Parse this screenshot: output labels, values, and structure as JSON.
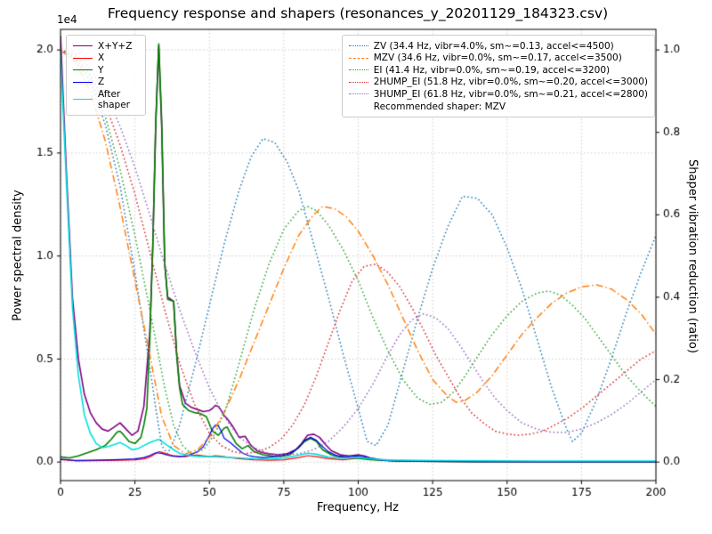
{
  "chart_data": {
    "type": "line",
    "title": "Frequency response and shapers (resonances_y_20201129_184323.csv)",
    "xlabel": "Frequency, Hz",
    "ylabel_left": "Power spectral density",
    "ylabel_right": "Shaper vibration reduction (ratio)",
    "y_left_offset_text": "1e4",
    "grid": true,
    "xlim": [
      0,
      200
    ],
    "ylim_left": [
      -900,
      21000
    ],
    "ylim_right": [
      -0.045,
      1.05
    ],
    "x_ticks": [
      0,
      25,
      50,
      75,
      100,
      125,
      150,
      175,
      200
    ],
    "x_tick_labels": [
      "0",
      "25",
      "50",
      "75",
      "100",
      "125",
      "150",
      "175",
      "200"
    ],
    "y_left_ticks": [
      0,
      5000,
      10000,
      15000,
      20000
    ],
    "y_left_tick_labels": [
      "0.0",
      "0.5",
      "1.0",
      "1.5",
      "2.0"
    ],
    "y_right_ticks": [
      0,
      0.2,
      0.4,
      0.6,
      0.8,
      1.0
    ],
    "y_right_tick_labels": [
      "0.0",
      "0.2",
      "0.4",
      "0.6",
      "0.8",
      "1.0"
    ],
    "legend_psd": {
      "items": [
        {
          "label": "X+Y+Z",
          "color": "#800080",
          "style": "solid"
        },
        {
          "label": "X",
          "color": "#ff0000",
          "style": "solid"
        },
        {
          "label": "Y",
          "color": "#008000",
          "style": "solid"
        },
        {
          "label": "Z",
          "color": "#0000ee",
          "style": "solid"
        },
        {
          "label": "After shaper",
          "color": "#00e0e0",
          "style": "solid"
        }
      ]
    },
    "legend_shapers": {
      "items": [
        {
          "label": "ZV (34.4 Hz, vibr=4.0%, sm~=0.13, accel<=4500)",
          "color": "#1f77b4",
          "style": "dot"
        },
        {
          "label": "MZV (34.6 Hz, vibr=0.0%, sm~=0.17, accel<=3500)",
          "color": "#ff7f0e",
          "style": "dashdot"
        },
        {
          "label": "EI (41.4 Hz, vibr=0.0%, sm~=0.19, accel<=3200)",
          "color": "#2ca02c",
          "style": "dot"
        },
        {
          "label": "2HUMP_EI (51.8 Hz, vibr=0.0%, sm~=0.20, accel<=3000)",
          "color": "#d62728",
          "style": "dot"
        },
        {
          "label": "3HUMP_EI (61.8 Hz, vibr=0.0%, sm~=0.21, accel<=2800)",
          "color": "#9467bd",
          "style": "dot"
        }
      ],
      "note": "Recommended shaper: MZV"
    },
    "series": [
      {
        "name": "psd-sum",
        "label": "X+Y+Z",
        "color": "#800080",
        "style": "solid",
        "width": 1.6,
        "axis": "left",
        "x": [
          0,
          2,
          4,
          6,
          8,
          10,
          12,
          14,
          16,
          18,
          20,
          22,
          24,
          26,
          28,
          30,
          31,
          32,
          33,
          34,
          35,
          36,
          37,
          38,
          39,
          40,
          42,
          44,
          46,
          48,
          50,
          51,
          52,
          53,
          54,
          55,
          56,
          58,
          60,
          62,
          64,
          66,
          68,
          70,
          73,
          76,
          79,
          81,
          83,
          85,
          87,
          89,
          91,
          94,
          97,
          100,
          102,
          104,
          107,
          110,
          115,
          120,
          130,
          140,
          160,
          180,
          200
        ],
        "y": [
          20700,
          14000,
          8000,
          5000,
          3300,
          2400,
          1900,
          1600,
          1500,
          1700,
          1900,
          1600,
          1300,
          1500,
          2700,
          6300,
          10500,
          16500,
          20200,
          16200,
          9600,
          8000,
          7900,
          7800,
          5300,
          3700,
          2850,
          2650,
          2550,
          2450,
          2500,
          2600,
          2750,
          2700,
          2500,
          2250,
          2100,
          1700,
          1200,
          1250,
          800,
          550,
          450,
          400,
          350,
          400,
          600,
          900,
          1300,
          1350,
          1200,
          850,
          550,
          350,
          300,
          350,
          300,
          200,
          120,
          80,
          50,
          40,
          30,
          25,
          18,
          14,
          12
        ]
      },
      {
        "name": "psd-x",
        "label": "X",
        "color": "#ff0000",
        "style": "solid",
        "width": 1.2,
        "axis": "left",
        "x": [
          0,
          5,
          10,
          15,
          20,
          25,
          28,
          30,
          32,
          33,
          34,
          36,
          38,
          40,
          42,
          44,
          46,
          48,
          50,
          52,
          54,
          56,
          58,
          60,
          65,
          70,
          75,
          80,
          83,
          86,
          90,
          95,
          100,
          103,
          106,
          110,
          120,
          140,
          160,
          180,
          200
        ],
        "y": [
          120,
          60,
          70,
          80,
          90,
          110,
          150,
          250,
          420,
          500,
          480,
          380,
          300,
          280,
          260,
          320,
          340,
          300,
          270,
          300,
          280,
          240,
          200,
          160,
          110,
          90,
          110,
          220,
          310,
          260,
          160,
          110,
          190,
          160,
          110,
          60,
          30,
          20,
          15,
          10,
          10
        ]
      },
      {
        "name": "psd-y",
        "label": "Y",
        "color": "#008000",
        "style": "solid",
        "width": 1.6,
        "axis": "left",
        "x": [
          0,
          3,
          6,
          9,
          12,
          15,
          17,
          19,
          20,
          21,
          23,
          25,
          27,
          28,
          29,
          30,
          31,
          32,
          33,
          34,
          35,
          36,
          37,
          38,
          39,
          40,
          41,
          43,
          45,
          47,
          49,
          51,
          53,
          55,
          56,
          57,
          59,
          61,
          63,
          65,
          68,
          71,
          74,
          77,
          80,
          82,
          84,
          86,
          88,
          91,
          94,
          97,
          100,
          104,
          108,
          112,
          120,
          140,
          160,
          180,
          200
        ],
        "y": [
          250,
          200,
          300,
          450,
          600,
          800,
          1100,
          1450,
          1500,
          1350,
          1000,
          900,
          1200,
          1800,
          2600,
          6000,
          10500,
          16500,
          20300,
          16500,
          9700,
          7900,
          7850,
          7800,
          5200,
          3600,
          2800,
          2500,
          2400,
          2350,
          2200,
          1500,
          1300,
          1650,
          1700,
          1400,
          900,
          650,
          800,
          500,
          350,
          300,
          280,
          350,
          700,
          1000,
          1150,
          1000,
          600,
          350,
          250,
          200,
          180,
          120,
          80,
          60,
          40,
          25,
          18,
          12,
          10
        ]
      },
      {
        "name": "psd-z",
        "label": "Z",
        "color": "#0000ee",
        "style": "solid",
        "width": 1.2,
        "axis": "left",
        "x": [
          0,
          5,
          10,
          15,
          20,
          25,
          28,
          30,
          32,
          34,
          36,
          38,
          40,
          42,
          44,
          46,
          48,
          50,
          51,
          52,
          53,
          54,
          55,
          57,
          59,
          61,
          63,
          65,
          68,
          71,
          74,
          77,
          80,
          82,
          84,
          86,
          88,
          90,
          93,
          96,
          99,
          102,
          105,
          108,
          112,
          120,
          140,
          160,
          180,
          200
        ],
        "y": [
          140,
          80,
          90,
          100,
          120,
          150,
          220,
          320,
          450,
          420,
          330,
          280,
          260,
          300,
          380,
          500,
          750,
          1300,
          1600,
          1800,
          1750,
          1500,
          1150,
          950,
          700,
          450,
          320,
          260,
          220,
          250,
          300,
          400,
          700,
          1050,
          1200,
          1050,
          750,
          500,
          300,
          250,
          280,
          260,
          160,
          90,
          60,
          40,
          25,
          15,
          10,
          10
        ]
      },
      {
        "name": "psd-after-shaper",
        "label": "After shaper",
        "color": "#00e0e0",
        "style": "solid",
        "width": 1.6,
        "axis": "left",
        "x": [
          0,
          2,
          4,
          6,
          8,
          10,
          12,
          14,
          16,
          18,
          20,
          22,
          24,
          26,
          28,
          30,
          32,
          33,
          34,
          36,
          38,
          40,
          44,
          48,
          52,
          56,
          60,
          65,
          70,
          75,
          80,
          83,
          86,
          90,
          95,
          100,
          105,
          110,
          120,
          140,
          160,
          180,
          200
        ],
        "y": [
          19800,
          13500,
          7500,
          4200,
          2300,
          1400,
          900,
          700,
          750,
          850,
          950,
          800,
          600,
          650,
          800,
          950,
          1050,
          1100,
          1000,
          800,
          600,
          420,
          300,
          260,
          260,
          230,
          200,
          160,
          150,
          200,
          330,
          430,
          380,
          240,
          190,
          230,
          150,
          100,
          80,
          60,
          50,
          50,
          50
        ]
      },
      {
        "name": "shaper-zv",
        "label": "ZV",
        "color": "#1f77b4",
        "style": "dot",
        "width": 1.5,
        "axis": "right",
        "x": [
          0,
          5,
          10,
          15,
          20,
          25,
          30,
          32,
          34,
          36,
          38,
          40,
          45,
          50,
          55,
          60,
          64,
          68,
          72,
          76,
          80,
          85,
          90,
          95,
          100,
          103,
          106,
          110,
          115,
          120,
          125,
          130,
          135,
          140,
          145,
          150,
          155,
          160,
          165,
          170,
          172,
          175,
          180,
          185,
          190,
          195,
          200
        ],
        "y": [
          1.0,
          0.975,
          0.92,
          0.82,
          0.67,
          0.46,
          0.23,
          0.13,
          0.04,
          0.02,
          0.05,
          0.09,
          0.23,
          0.38,
          0.53,
          0.66,
          0.74,
          0.785,
          0.775,
          0.73,
          0.66,
          0.53,
          0.4,
          0.26,
          0.13,
          0.05,
          0.04,
          0.09,
          0.22,
          0.35,
          0.47,
          0.57,
          0.645,
          0.64,
          0.6,
          0.52,
          0.42,
          0.3,
          0.18,
          0.08,
          0.05,
          0.07,
          0.15,
          0.25,
          0.36,
          0.46,
          0.55
        ]
      },
      {
        "name": "shaper-mzv",
        "label": "MZV",
        "color": "#ff7f0e",
        "style": "dashdot",
        "width": 1.5,
        "axis": "right",
        "x": [
          0,
          5,
          10,
          15,
          20,
          25,
          30,
          34,
          38,
          42,
          46,
          50,
          55,
          60,
          65,
          70,
          75,
          80,
          85,
          88,
          92,
          96,
          100,
          105,
          110,
          115,
          120,
          125,
          130,
          133,
          136,
          140,
          145,
          150,
          155,
          160,
          165,
          170,
          175,
          180,
          185,
          190,
          195,
          200
        ],
        "y": [
          1.0,
          0.97,
          0.9,
          0.78,
          0.62,
          0.44,
          0.26,
          0.11,
          0.04,
          0.02,
          0.03,
          0.06,
          0.12,
          0.2,
          0.29,
          0.38,
          0.47,
          0.55,
          0.6,
          0.62,
          0.615,
          0.595,
          0.56,
          0.5,
          0.43,
          0.35,
          0.27,
          0.2,
          0.16,
          0.145,
          0.15,
          0.17,
          0.21,
          0.26,
          0.31,
          0.35,
          0.385,
          0.41,
          0.425,
          0.43,
          0.42,
          0.395,
          0.36,
          0.31
        ]
      },
      {
        "name": "shaper-ei",
        "label": "EI",
        "color": "#2ca02c",
        "style": "dot",
        "width": 1.5,
        "axis": "right",
        "x": [
          0,
          5,
          10,
          15,
          20,
          25,
          30,
          35,
          38,
          41,
          44,
          48,
          52,
          56,
          60,
          65,
          70,
          75,
          80,
          83,
          86,
          90,
          95,
          100,
          105,
          110,
          115,
          120,
          124,
          128,
          132,
          136,
          140,
          145,
          150,
          155,
          160,
          164,
          168,
          172,
          176,
          180,
          185,
          190,
          195,
          200
        ],
        "y": [
          1.0,
          0.98,
          0.93,
          0.84,
          0.71,
          0.55,
          0.37,
          0.18,
          0.09,
          0.04,
          0.02,
          0.03,
          0.07,
          0.14,
          0.24,
          0.37,
          0.48,
          0.565,
          0.61,
          0.62,
          0.61,
          0.575,
          0.515,
          0.44,
          0.35,
          0.27,
          0.2,
          0.155,
          0.14,
          0.145,
          0.17,
          0.21,
          0.255,
          0.31,
          0.355,
          0.39,
          0.41,
          0.415,
          0.405,
          0.38,
          0.35,
          0.31,
          0.26,
          0.21,
          0.17,
          0.135
        ]
      },
      {
        "name": "shaper-2hump-ei",
        "label": "2HUMP_EI",
        "color": "#d62728",
        "style": "dot",
        "width": 1.5,
        "axis": "right",
        "x": [
          0,
          5,
          10,
          15,
          20,
          25,
          30,
          35,
          40,
          45,
          50,
          54,
          58,
          62,
          66,
          70,
          74,
          78,
          82,
          86,
          90,
          94,
          98,
          102,
          106,
          110,
          114,
          118,
          122,
          126,
          130,
          134,
          138,
          142,
          146,
          150,
          154,
          158,
          162,
          166,
          170,
          175,
          180,
          185,
          190,
          195,
          200
        ],
        "y": [
          1.0,
          0.985,
          0.94,
          0.87,
          0.77,
          0.65,
          0.51,
          0.37,
          0.24,
          0.14,
          0.07,
          0.04,
          0.025,
          0.02,
          0.025,
          0.035,
          0.055,
          0.09,
          0.14,
          0.21,
          0.29,
          0.37,
          0.44,
          0.475,
          0.48,
          0.46,
          0.425,
          0.375,
          0.32,
          0.26,
          0.21,
          0.16,
          0.12,
          0.095,
          0.075,
          0.068,
          0.065,
          0.068,
          0.075,
          0.09,
          0.105,
          0.13,
          0.16,
          0.19,
          0.22,
          0.25,
          0.27
        ]
      },
      {
        "name": "shaper-3hump-ei",
        "label": "3HUMP_EI",
        "color": "#9467bd",
        "style": "dot",
        "width": 1.5,
        "axis": "right",
        "x": [
          0,
          5,
          10,
          15,
          20,
          25,
          30,
          35,
          40,
          45,
          50,
          55,
          60,
          65,
          70,
          75,
          80,
          85,
          90,
          95,
          100,
          105,
          110,
          114,
          118,
          122,
          126,
          130,
          134,
          138,
          142,
          146,
          150,
          155,
          160,
          165,
          170,
          175,
          180,
          185,
          190,
          195,
          200
        ],
        "y": [
          1.0,
          0.99,
          0.955,
          0.895,
          0.815,
          0.715,
          0.6,
          0.48,
          0.37,
          0.27,
          0.18,
          0.11,
          0.06,
          0.035,
          0.02,
          0.018,
          0.02,
          0.03,
          0.05,
          0.085,
          0.13,
          0.19,
          0.26,
          0.31,
          0.345,
          0.36,
          0.35,
          0.325,
          0.285,
          0.24,
          0.195,
          0.155,
          0.125,
          0.095,
          0.08,
          0.072,
          0.072,
          0.08,
          0.095,
          0.115,
          0.14,
          0.17,
          0.2
        ]
      }
    ]
  }
}
